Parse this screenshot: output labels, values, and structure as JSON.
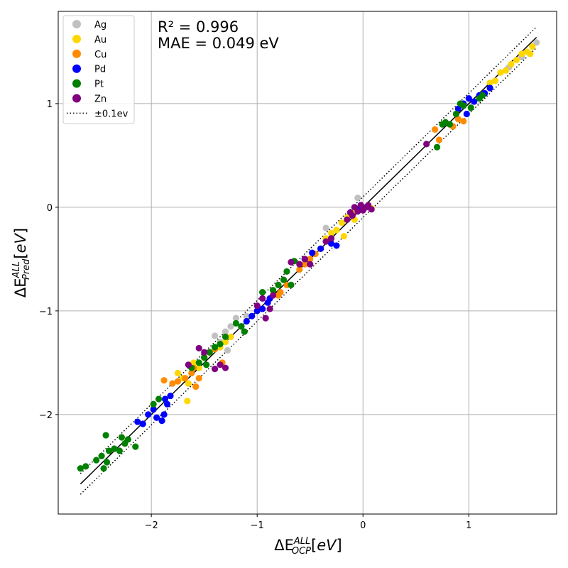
{
  "chart_data": {
    "type": "scatter",
    "xlabel": "ΔE^{ALL}_{OCP}[eV]",
    "ylabel": "ΔE^{ALL}_{Pred}[eV]",
    "xlim": [
      -2.88,
      1.83
    ],
    "ylim": [
      -2.96,
      1.89
    ],
    "x_ticks": [
      -2,
      -1,
      0,
      1
    ],
    "y_ticks": [
      -2,
      -1,
      0,
      1
    ],
    "grid": true,
    "legend_position": "top-left",
    "annotations": [
      "R² = 0.996",
      "MAE = 0.049 eV"
    ],
    "parity_line": {
      "name": "",
      "from": [
        -2.67,
        -2.67
      ],
      "to": [
        1.64,
        1.64
      ],
      "color": "#000000"
    },
    "band_lines": {
      "name": "±0.1ev",
      "offset": 0.1,
      "style": "dotted"
    },
    "series": [
      {
        "name": "Ag",
        "color": "#c0c0c0",
        "points": [
          [
            -1.4,
            -1.24
          ],
          [
            -1.3,
            -1.2
          ],
          [
            -1.25,
            -1.15
          ],
          [
            -1.2,
            -1.07
          ],
          [
            -1.1,
            -1.1
          ],
          [
            -1.35,
            -1.3
          ],
          [
            -1.28,
            -1.38
          ],
          [
            -0.35,
            -0.2
          ],
          [
            -0.3,
            -0.3
          ],
          [
            -0.05,
            0.09
          ],
          [
            1.38,
            1.35
          ],
          [
            1.5,
            1.45
          ],
          [
            1.64,
            1.59
          ],
          [
            -1.1,
            -1.05
          ]
        ]
      },
      {
        "name": "Au",
        "color": "#ffd700",
        "points": [
          [
            -1.66,
            -1.87
          ],
          [
            -1.75,
            -1.6
          ],
          [
            -1.7,
            -1.65
          ],
          [
            -1.6,
            -1.5
          ],
          [
            -1.55,
            -1.55
          ],
          [
            -1.5,
            -1.45
          ],
          [
            -1.45,
            -1.4
          ],
          [
            -1.65,
            -1.7
          ],
          [
            -1.35,
            -1.35
          ],
          [
            -1.3,
            -1.3
          ],
          [
            -1.25,
            -1.25
          ],
          [
            -0.35,
            -0.3
          ],
          [
            -0.3,
            -0.25
          ],
          [
            -0.25,
            -0.22
          ],
          [
            -0.2,
            -0.15
          ],
          [
            -0.15,
            -0.1
          ],
          [
            -0.1,
            -0.05
          ],
          [
            -0.08,
            -0.12
          ],
          [
            -0.02,
            -0.02
          ],
          [
            0.08,
            -0.01
          ],
          [
            -0.18,
            -0.28
          ],
          [
            1.2,
            1.2
          ],
          [
            1.25,
            1.22
          ],
          [
            1.3,
            1.3
          ],
          [
            1.35,
            1.32
          ],
          [
            1.4,
            1.38
          ],
          [
            1.45,
            1.42
          ],
          [
            1.5,
            1.48
          ],
          [
            1.55,
            1.5
          ],
          [
            1.58,
            1.48
          ],
          [
            1.6,
            1.55
          ]
        ]
      },
      {
        "name": "Cu",
        "color": "#ff8c00",
        "points": [
          [
            -1.88,
            -1.67
          ],
          [
            -1.8,
            -1.7
          ],
          [
            -1.75,
            -1.68
          ],
          [
            -1.68,
            -1.65
          ],
          [
            -1.62,
            -1.6
          ],
          [
            -1.58,
            -1.73
          ],
          [
            -1.55,
            -1.65
          ],
          [
            -1.5,
            -1.45
          ],
          [
            -1.45,
            -1.4
          ],
          [
            -1.4,
            -1.37
          ],
          [
            -1.33,
            -1.5
          ],
          [
            -1.6,
            -1.55
          ],
          [
            -0.6,
            -0.6
          ],
          [
            -0.55,
            -0.55
          ],
          [
            -0.5,
            -0.5
          ],
          [
            -0.45,
            -0.45
          ],
          [
            -0.4,
            -0.4
          ],
          [
            -0.78,
            -0.82
          ],
          [
            -0.72,
            -0.75
          ],
          [
            -0.8,
            -0.85
          ],
          [
            0.68,
            0.75
          ],
          [
            0.72,
            0.65
          ],
          [
            0.85,
            0.78
          ],
          [
            0.9,
            0.85
          ],
          [
            0.95,
            0.83
          ]
        ]
      },
      {
        "name": "Pd",
        "color": "#0000ff",
        "points": [
          [
            -2.13,
            -2.07
          ],
          [
            -2.08,
            -2.09
          ],
          [
            -2.03,
            -2.0
          ],
          [
            -1.98,
            -1.95
          ],
          [
            -1.95,
            -2.03
          ],
          [
            -1.9,
            -2.06
          ],
          [
            -1.87,
            -1.85
          ],
          [
            -1.85,
            -1.9
          ],
          [
            -1.82,
            -1.82
          ],
          [
            -1.88,
            -2.0
          ],
          [
            -1.15,
            -1.15
          ],
          [
            -1.1,
            -1.1
          ],
          [
            -1.05,
            -1.05
          ],
          [
            -1.0,
            -1.0
          ],
          [
            -0.95,
            -0.98
          ],
          [
            -0.9,
            -0.92
          ],
          [
            -0.88,
            -0.88
          ],
          [
            -0.55,
            -0.5
          ],
          [
            -0.48,
            -0.44
          ],
          [
            -0.4,
            -0.4
          ],
          [
            -0.3,
            -0.35
          ],
          [
            -0.25,
            -0.37
          ],
          [
            -0.05,
            -0.02
          ],
          [
            -0.02,
            0.02
          ],
          [
            0.9,
            0.95
          ],
          [
            0.95,
            1.0
          ],
          [
            1.0,
            1.05
          ],
          [
            1.05,
            1.02
          ],
          [
            1.1,
            1.08
          ],
          [
            1.15,
            1.1
          ],
          [
            1.2,
            1.15
          ],
          [
            0.98,
            0.9
          ]
        ]
      },
      {
        "name": "Pt",
        "color": "#008000",
        "points": [
          [
            -2.67,
            -2.52
          ],
          [
            -2.62,
            -2.5
          ],
          [
            -2.52,
            -2.44
          ],
          [
            -2.47,
            -2.4
          ],
          [
            -2.45,
            -2.52
          ],
          [
            -2.42,
            -2.46
          ],
          [
            -2.4,
            -2.35
          ],
          [
            -2.35,
            -2.33
          ],
          [
            -2.3,
            -2.35
          ],
          [
            -2.28,
            -2.22
          ],
          [
            -2.25,
            -2.28
          ],
          [
            -2.22,
            -2.24
          ],
          [
            -2.15,
            -2.31
          ],
          [
            -2.43,
            -2.2
          ],
          [
            -1.98,
            -1.9
          ],
          [
            -1.93,
            -1.85
          ],
          [
            -1.62,
            -1.55
          ],
          [
            -1.55,
            -1.5
          ],
          [
            -1.5,
            -1.45
          ],
          [
            -1.48,
            -1.52
          ],
          [
            -1.45,
            -1.4
          ],
          [
            -1.4,
            -1.35
          ],
          [
            -1.35,
            -1.32
          ],
          [
            -1.3,
            -1.25
          ],
          [
            -1.15,
            -1.15
          ],
          [
            -1.12,
            -1.2
          ],
          [
            -1.2,
            -1.12
          ],
          [
            -0.95,
            -0.82
          ],
          [
            -0.85,
            -0.8
          ],
          [
            -0.8,
            -0.75
          ],
          [
            -0.75,
            -0.7
          ],
          [
            -0.72,
            -0.62
          ],
          [
            -0.68,
            -0.75
          ],
          [
            -0.65,
            -0.52
          ],
          [
            0.7,
            0.58
          ],
          [
            0.75,
            0.8
          ],
          [
            0.78,
            0.82
          ],
          [
            0.82,
            0.8
          ],
          [
            0.88,
            0.9
          ],
          [
            0.92,
            1.0
          ],
          [
            0.95,
            0.98
          ],
          [
            1.02,
            0.96
          ],
          [
            1.1,
            1.05
          ],
          [
            1.13,
            1.08
          ]
        ]
      },
      {
        "name": "Zn",
        "color": "#800080",
        "points": [
          [
            -1.65,
            -1.52
          ],
          [
            -1.55,
            -1.36
          ],
          [
            -1.5,
            -1.4
          ],
          [
            -1.4,
            -1.56
          ],
          [
            -1.35,
            -1.52
          ],
          [
            -1.3,
            -1.55
          ],
          [
            -1.0,
            -0.95
          ],
          [
            -0.95,
            -0.88
          ],
          [
            -0.92,
            -1.07
          ],
          [
            -0.88,
            -0.98
          ],
          [
            -0.85,
            -0.85
          ],
          [
            -0.68,
            -0.53
          ],
          [
            -0.6,
            -0.55
          ],
          [
            -0.55,
            -0.5
          ],
          [
            -0.5,
            -0.55
          ],
          [
            -0.35,
            -0.33
          ],
          [
            -0.3,
            -0.3
          ],
          [
            -0.12,
            -0.05
          ],
          [
            -0.1,
            -0.08
          ],
          [
            -0.08,
            0.0
          ],
          [
            -0.05,
            -0.04
          ],
          [
            -0.02,
            0.02
          ],
          [
            0.0,
            -0.03
          ],
          [
            0.03,
            0.0
          ],
          [
            0.05,
            0.02
          ],
          [
            0.08,
            -0.02
          ],
          [
            -0.15,
            -0.12
          ],
          [
            0.6,
            0.61
          ]
        ]
      }
    ]
  }
}
